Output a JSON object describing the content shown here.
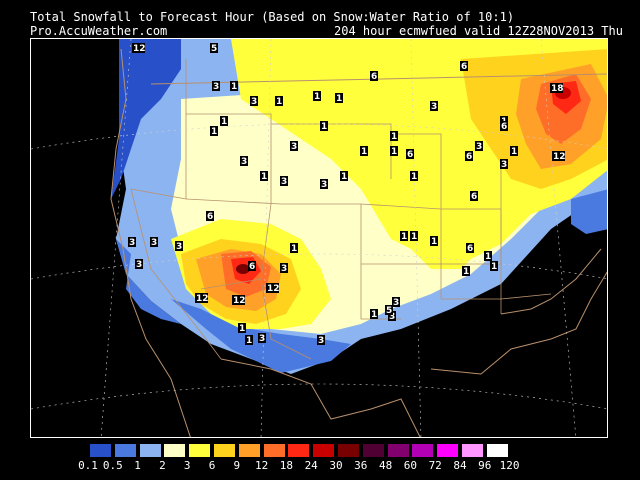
{
  "header": {
    "title": "Total Snowfall to Forecast Hour (Based on Snow:Water Ratio of 10:1)",
    "source": "Pro.AccuWeather.com",
    "run_info": "204 hour ecmwfued valid  12Z28NOV2013  Thu"
  },
  "legend": {
    "colors": [
      "#2850c8",
      "#4a7ae0",
      "#8cb4f0",
      "#ffffc8",
      "#ffff3c",
      "#ffd21e",
      "#ffa028",
      "#ff6e28",
      "#ff2814",
      "#c80000",
      "#780000",
      "#500032",
      "#82006e",
      "#b400b4",
      "#ff00ff",
      "#ff96ff",
      "#ffffff"
    ],
    "labels": [
      "0.1",
      "0.5",
      "1",
      "2",
      "3",
      "6",
      "9",
      "12",
      "18",
      "24",
      "30",
      "36",
      "48",
      "60",
      "72",
      "84",
      "96",
      "120"
    ]
  },
  "map": {
    "contour_labels": [
      "12",
      "5",
      "3",
      "1",
      "3",
      "1",
      "1",
      "3",
      "1",
      "1",
      "6",
      "6",
      "1",
      "3",
      "3",
      "1",
      "1",
      "1",
      "6",
      "3",
      "1",
      "1",
      "1",
      "3",
      "1",
      "1",
      "1",
      "1",
      "18",
      "12",
      "6",
      "6",
      "6",
      "1",
      "1",
      "3",
      "12",
      "6",
      "12",
      "3",
      "3",
      "12",
      "1",
      "6",
      "3",
      "1",
      "3",
      "3",
      "1",
      "1",
      "3",
      "3",
      "1",
      "6",
      "3",
      "1",
      "1",
      "3",
      "5",
      "3"
    ]
  }
}
